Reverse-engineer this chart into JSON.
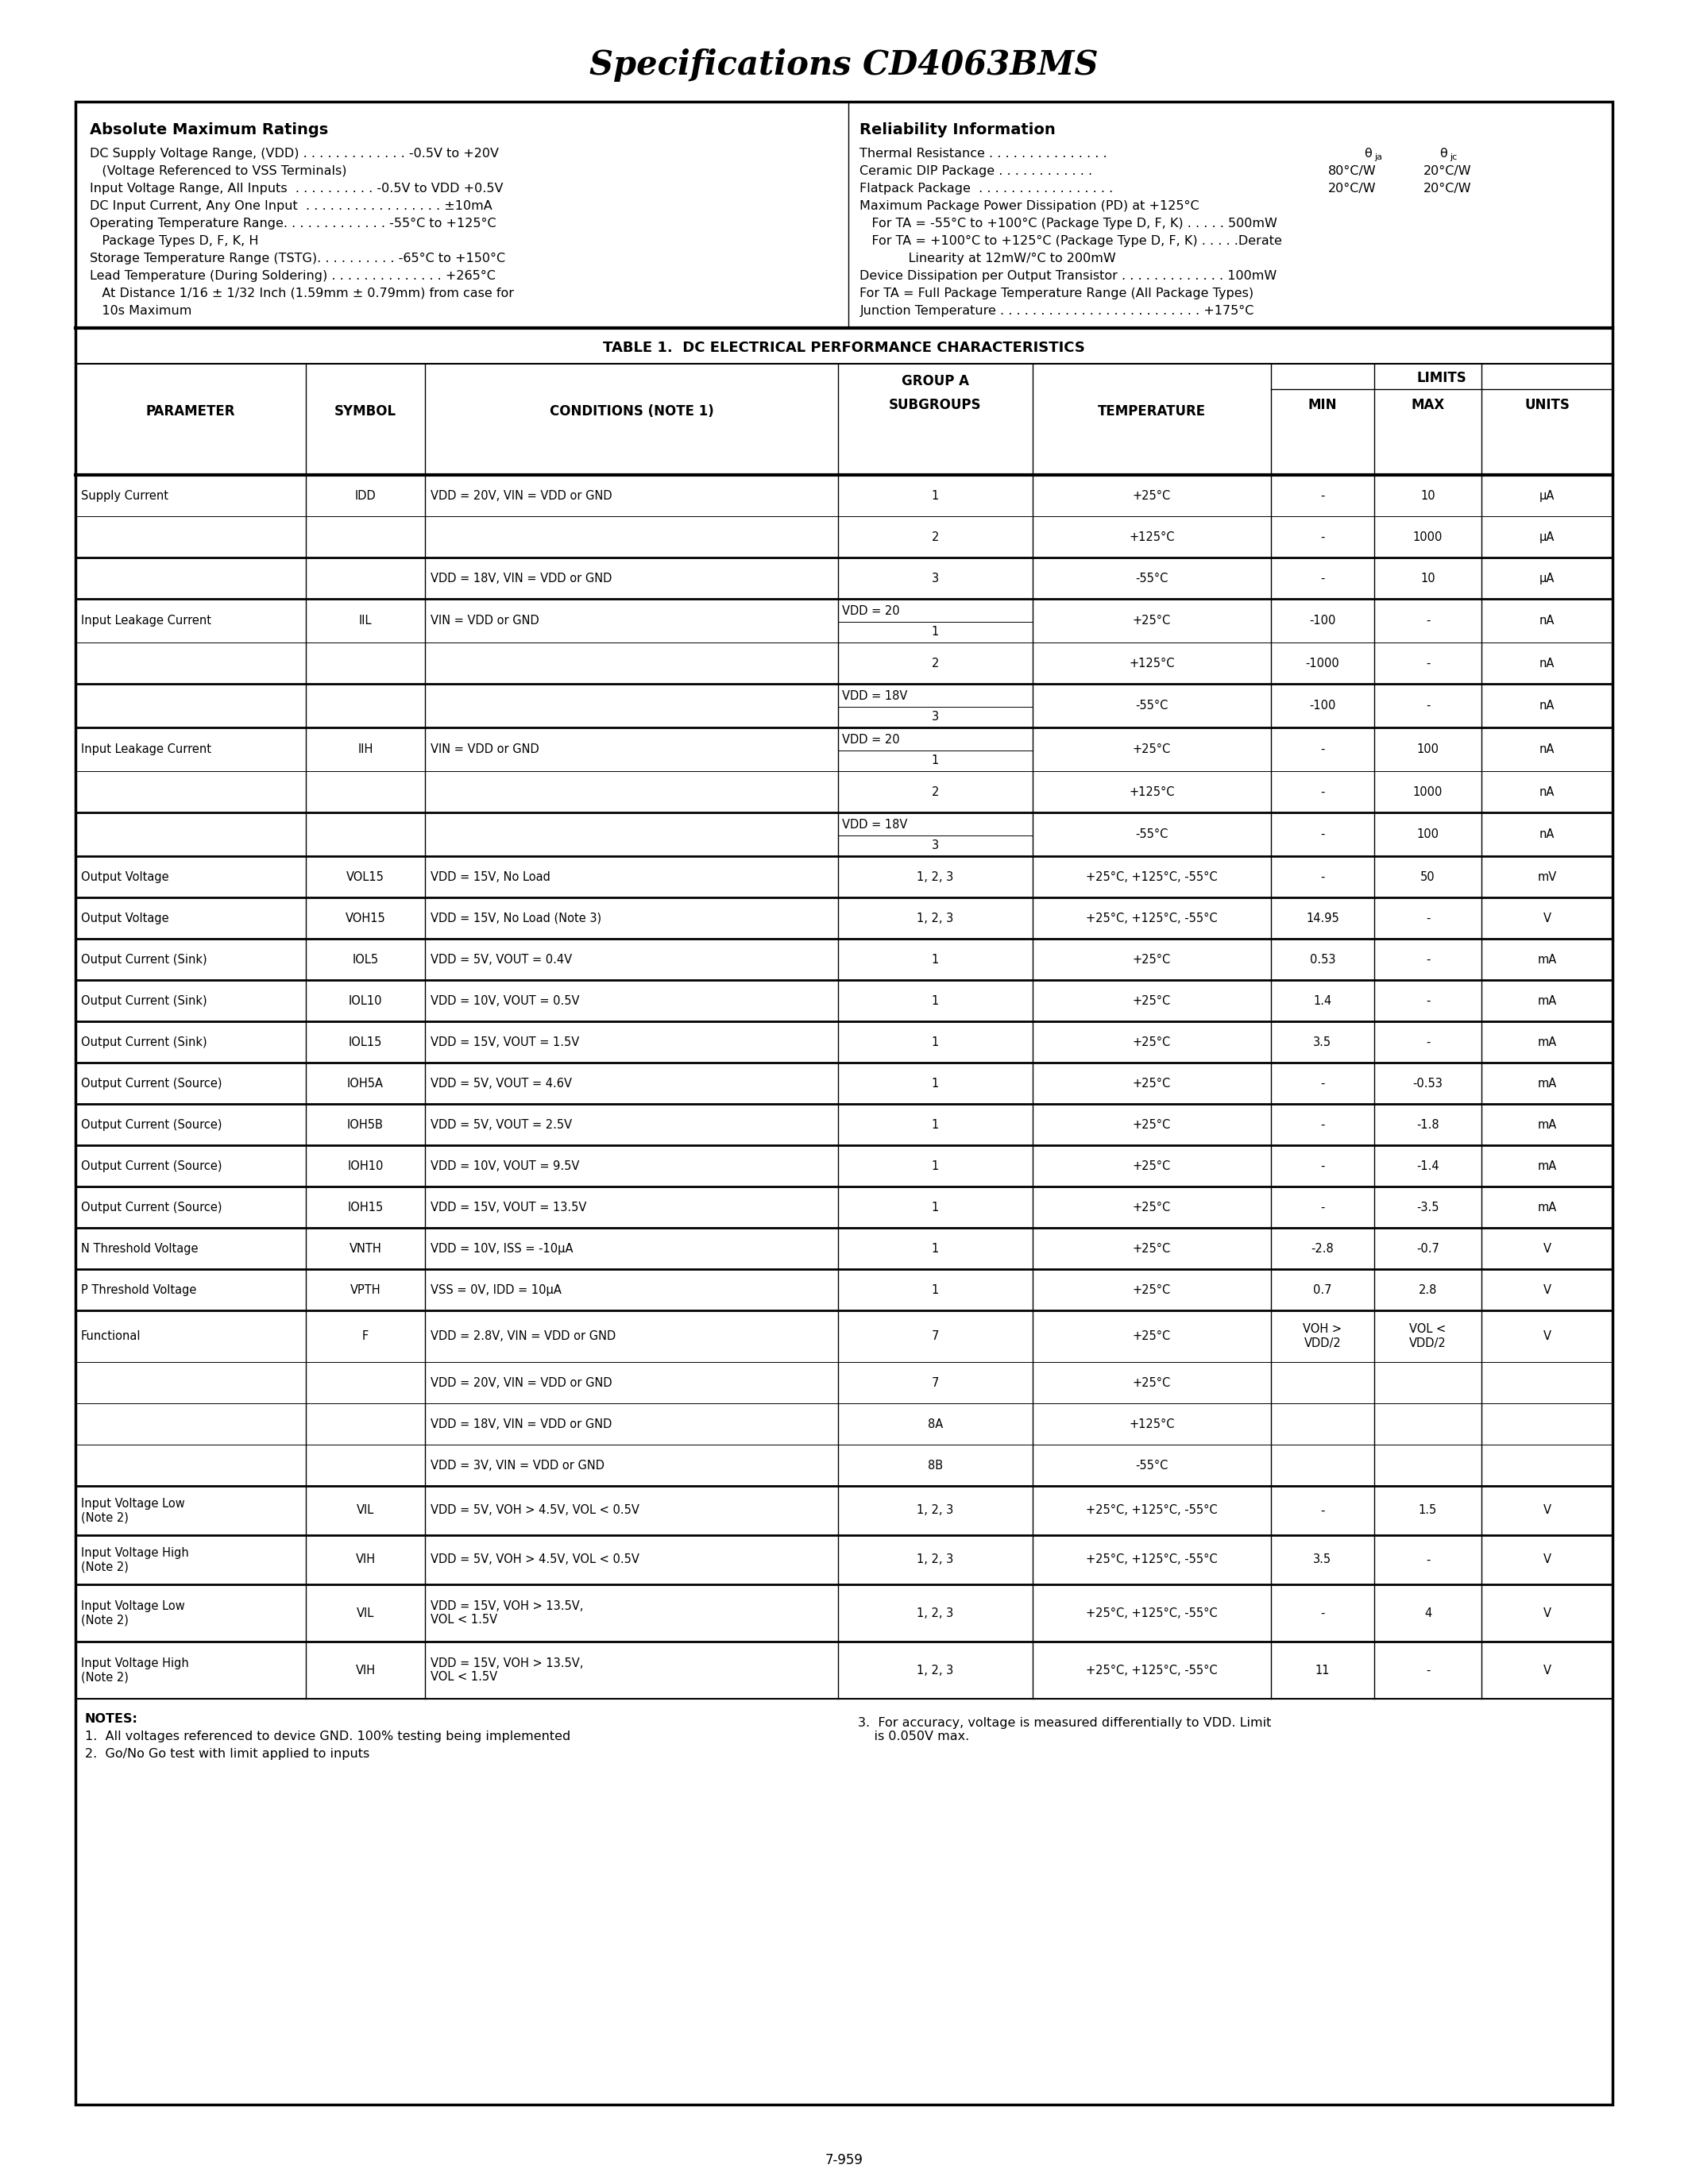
{
  "title": "Specifications CD4063BMS",
  "page_number": "7-959",
  "abs_max_title": "Absolute Maximum Ratings",
  "reliability_title": "Reliability Information",
  "table_title": "TABLE 1.  DC ELECTRICAL PERFORMANCE CHARACTERISTICS"
}
